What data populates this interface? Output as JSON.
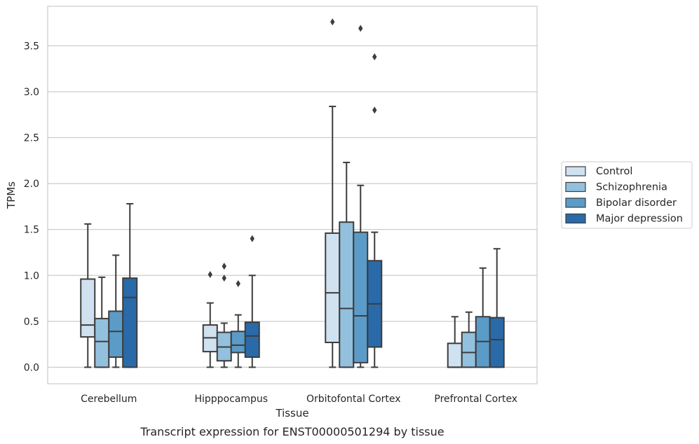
{
  "chart_data": {
    "type": "box",
    "caption": "Transcript expression for ENST00000501294 by tissue",
    "xlabel": "Tissue",
    "ylabel": "TPMs",
    "ylim": [
      -0.18,
      3.93
    ],
    "yticks": [
      "0.0",
      "0.5",
      "1.0",
      "1.5",
      "2.0",
      "2.5",
      "3.0",
      "3.5"
    ],
    "grid": "horizontal",
    "legend_position": "right",
    "categories": [
      "Cerebellum",
      "Hipppocampus",
      "Orbitofontal Cortex",
      "Prefrontal Cortex"
    ],
    "series": [
      {
        "name": "Control",
        "color": "#d0e1f0",
        "boxes": [
          {
            "whislo": 0.0,
            "q1": 0.33,
            "med": 0.46,
            "q3": 0.96,
            "whishi": 1.56,
            "fliers": []
          },
          {
            "whislo": 0.0,
            "q1": 0.17,
            "med": 0.32,
            "q3": 0.46,
            "whishi": 0.7,
            "fliers": [
              1.01
            ]
          },
          {
            "whislo": 0.0,
            "q1": 0.27,
            "med": 0.81,
            "q3": 1.46,
            "whishi": 2.84,
            "fliers": [
              3.76
            ]
          },
          {
            "whislo": 0.0,
            "q1": 0.0,
            "med": 0.0,
            "q3": 0.26,
            "whishi": 0.55,
            "fliers": []
          }
        ]
      },
      {
        "name": "Schizophrenia",
        "color": "#93c0dd",
        "boxes": [
          {
            "whislo": 0.0,
            "q1": 0.0,
            "med": 0.28,
            "q3": 0.53,
            "whishi": 0.98,
            "fliers": []
          },
          {
            "whislo": 0.0,
            "q1": 0.07,
            "med": 0.22,
            "q3": 0.38,
            "whishi": 0.48,
            "fliers": [
              1.1,
              0.97
            ]
          },
          {
            "whislo": 0.0,
            "q1": 0.0,
            "med": 0.64,
            "q3": 1.58,
            "whishi": 2.23,
            "fliers": []
          },
          {
            "whislo": 0.0,
            "q1": 0.0,
            "med": 0.16,
            "q3": 0.38,
            "whishi": 0.6,
            "fliers": []
          }
        ]
      },
      {
        "name": "Bipolar disorder",
        "color": "#5b9bc8",
        "boxes": [
          {
            "whislo": 0.0,
            "q1": 0.11,
            "med": 0.39,
            "q3": 0.61,
            "whishi": 1.22,
            "fliers": []
          },
          {
            "whislo": 0.0,
            "q1": 0.16,
            "med": 0.24,
            "q3": 0.39,
            "whishi": 0.57,
            "fliers": [
              0.91
            ]
          },
          {
            "whislo": 0.0,
            "q1": 0.05,
            "med": 0.56,
            "q3": 1.47,
            "whishi": 1.98,
            "fliers": [
              3.69
            ]
          },
          {
            "whislo": 0.0,
            "q1": 0.0,
            "med": 0.28,
            "q3": 0.55,
            "whishi": 1.08,
            "fliers": []
          }
        ]
      },
      {
        "name": "Major depression",
        "color": "#2a6aa8",
        "boxes": [
          {
            "whislo": 0.0,
            "q1": 0.0,
            "med": 0.76,
            "q3": 0.97,
            "whishi": 1.78,
            "fliers": []
          },
          {
            "whislo": 0.0,
            "q1": 0.11,
            "med": 0.34,
            "q3": 0.49,
            "whishi": 1.0,
            "fliers": [
              1.4
            ]
          },
          {
            "whislo": 0.0,
            "q1": 0.22,
            "med": 0.69,
            "q3": 1.16,
            "whishi": 1.47,
            "fliers": [
              3.38,
              2.8
            ]
          },
          {
            "whislo": 0.0,
            "q1": 0.0,
            "med": 0.3,
            "q3": 0.54,
            "whishi": 1.29,
            "fliers": []
          }
        ]
      }
    ]
  }
}
